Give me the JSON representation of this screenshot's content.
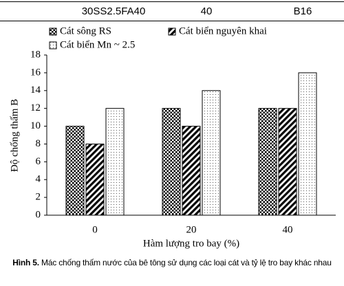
{
  "table_row": {
    "cells": [
      "30SS2.5FA40",
      "40",
      "B16"
    ]
  },
  "chart_data": {
    "type": "bar",
    "x_label": "Hàm lượng tro bay (%)",
    "y_label": "Độ chống thấm B",
    "categories": [
      "0",
      "20",
      "40"
    ],
    "series": [
      {
        "name": "Cát sông RS",
        "pattern": "grid",
        "color": "#000000",
        "values": [
          10,
          12,
          12
        ]
      },
      {
        "name": "Cát biển nguyên khai",
        "pattern": "hatch",
        "color": "#000000",
        "values": [
          8,
          10,
          12
        ]
      },
      {
        "name": "Cát biển Mn ~ 2.5",
        "pattern": "dots",
        "color": "#000000",
        "values": [
          12,
          14,
          16
        ]
      }
    ],
    "ylim": [
      0,
      18
    ],
    "yticks": [
      0,
      2,
      4,
      6,
      8,
      10,
      12,
      14,
      16,
      18
    ],
    "grid": false
  },
  "caption": {
    "label": "Hình 5.",
    "text": "Mác chống thấm nước của bê tông sử dụng các loại cát và tỷ lệ tro bay khác nhau"
  }
}
